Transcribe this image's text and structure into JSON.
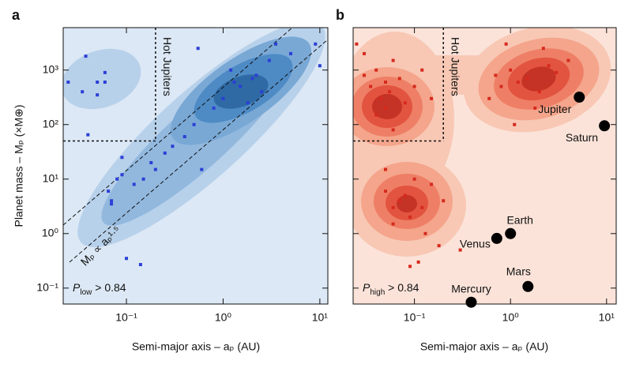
{
  "chart_data": [
    {
      "type": "scatter",
      "panel_label": "a",
      "x_label": "Semi-major axis – aₚ (AU)",
      "y_label": "Planet mass – Mₚ (×M⊕)",
      "log_x": true,
      "log_y": true,
      "color": "#2b3fd6",
      "background": "#dce8f5",
      "xlim": [
        0.0222,
        12.1
      ],
      "ylim": [
        0.051,
        6000
      ],
      "xticks": [
        {
          "value": 0.1,
          "label": "10⁻¹"
        },
        {
          "value": 1,
          "label": "10⁰"
        },
        {
          "value": 10,
          "label": "10¹"
        }
      ],
      "yticks": [
        {
          "value": 0.1,
          "label": "10⁻¹"
        },
        {
          "value": 1,
          "label": "10⁰"
        },
        {
          "value": 10,
          "label": "10¹"
        },
        {
          "value": 100,
          "label": "10²"
        },
        {
          "value": 1000,
          "label": "10³"
        }
      ],
      "hot_jupiter_label": "Hot Jupiters",
      "hot_jupiter_a": 0.2,
      "hot_jupiter_mass": 50,
      "power_law_label": "Mₚ ∝ aₚ¹·⁵",
      "probability_label": {
        "symbol": "P",
        "subscript": "low",
        "text": " > 0.84"
      },
      "x": [
        0.025,
        0.038,
        0.05,
        0.05,
        0.06,
        0.06,
        0.035,
        0.04,
        0.1,
        0.14,
        0.07,
        0.08,
        0.09,
        0.12,
        0.15,
        0.18,
        0.2,
        0.25,
        0.3,
        0.5,
        0.6,
        0.55,
        1.2,
        1.5,
        2,
        2.5,
        3,
        3.5,
        1,
        0.8,
        5,
        10,
        9,
        1.8,
        0.4,
        0.065,
        0.07,
        0.09,
        1.3,
        2.2
      ],
      "values": [
        600,
        1800,
        600,
        350,
        900,
        600,
        400,
        65,
        0.35,
        0.27,
        4,
        10,
        12,
        8,
        10,
        20,
        15,
        30,
        40,
        100,
        15,
        2500,
        1000,
        500,
        700,
        400,
        1500,
        3000,
        300,
        200,
        2000,
        1200,
        3000,
        250,
        60,
        6,
        3.5,
        25,
        600,
        800
      ]
    },
    {
      "type": "scatter",
      "panel_label": "b",
      "x_label": "Semi-major axis – aₚ (AU)",
      "log_x": true,
      "log_y": true,
      "color": "#d62a1e",
      "background": "#fbe3d9",
      "xlim": [
        0.023,
        12.6
      ],
      "ylim": [
        0.051,
        6000
      ],
      "xticks": [
        {
          "value": 0.1,
          "label": "10⁻¹"
        },
        {
          "value": 1,
          "label": "10⁰"
        },
        {
          "value": 10,
          "label": "10¹"
        }
      ],
      "hot_jupiter_label": "Hot Jupiters",
      "hot_jupiter_a": 0.2,
      "hot_jupiter_mass": 50,
      "probability_label": {
        "symbol": "P",
        "subscript": "high",
        "text": " > 0.84"
      },
      "x": [
        0.03,
        0.035,
        0.04,
        0.045,
        0.05,
        0.055,
        0.06,
        0.07,
        0.08,
        0.1,
        0.04,
        0.05,
        0.06,
        0.12,
        0.15,
        0.03,
        0.025,
        0.05,
        0.06,
        0.07,
        0.08,
        0.09,
        0.1,
        0.12,
        0.15,
        0.2,
        0.05,
        0.06,
        0.13,
        0.18,
        0.7,
        0.8,
        1,
        1.2,
        1.5,
        2,
        2.5,
        3,
        0.6,
        1.8,
        4,
        2.2,
        1.1,
        0.9,
        0.3,
        0.09,
        0.11
      ],
      "values": [
        800,
        500,
        1000,
        300,
        600,
        400,
        1500,
        700,
        250,
        500,
        150,
        200,
        80,
        1000,
        300,
        2000,
        3000,
        6,
        3,
        4,
        5,
        2,
        10,
        3,
        8,
        4,
        15,
        1.5,
        1,
        0.6,
        800,
        500,
        1000,
        600,
        700,
        400,
        1200,
        900,
        300,
        200,
        1500,
        2500,
        100,
        3000,
        0.5,
        0.25,
        0.3
      ],
      "planets": {
        "names": [
          "Mercury",
          "Venus",
          "Earth",
          "Mars",
          "Jupiter",
          "Saturn"
        ],
        "x": [
          0.39,
          0.72,
          1,
          1.52,
          5.2,
          9.5
        ],
        "values": [
          0.055,
          0.815,
          1,
          0.107,
          318,
          95
        ]
      }
    }
  ]
}
